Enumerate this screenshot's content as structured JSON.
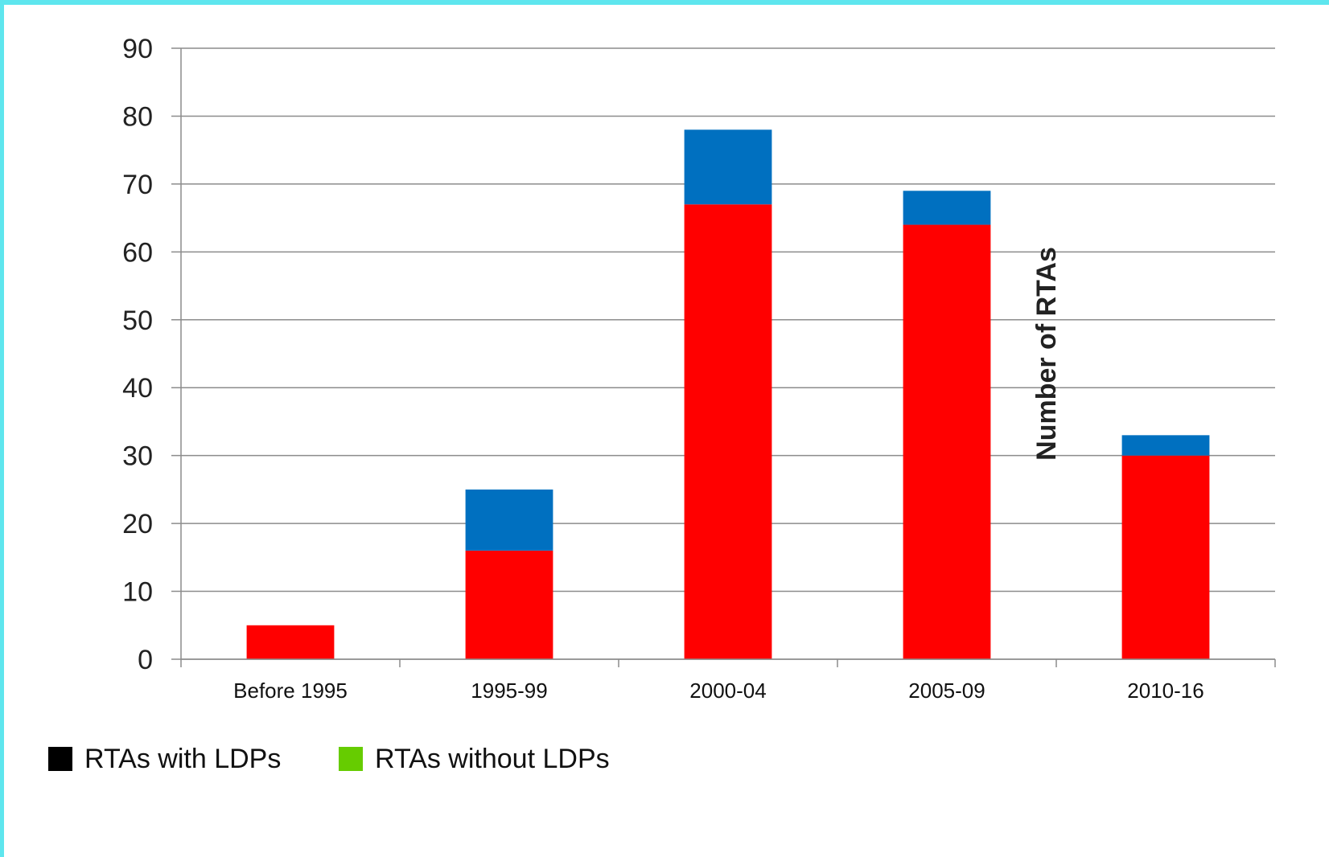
{
  "chart_data": {
    "type": "bar",
    "stacked": true,
    "categories": [
      "Before 1995",
      "1995-99",
      "2000-04",
      "2005-09",
      "2010-16"
    ],
    "series": [
      {
        "name": "RTAs with LDPs",
        "color": "#ff0000",
        "values": [
          5,
          16,
          67,
          64,
          30
        ]
      },
      {
        "name": "RTAs without LDPs",
        "color": "#0070c0",
        "values": [
          0,
          9,
          11,
          5,
          3
        ]
      }
    ],
    "legend_swatch_colors": [
      "#000000",
      "#66cc00"
    ],
    "ylabel": "Number of RTAs",
    "ylim": [
      0,
      90
    ],
    "yticks": [
      0,
      10,
      20,
      30,
      40,
      50,
      60,
      70,
      80,
      90
    ],
    "grid": true,
    "legend_position": "bottom",
    "legend": [
      "RTAs with LDPs",
      "RTAs without LDPs"
    ]
  }
}
